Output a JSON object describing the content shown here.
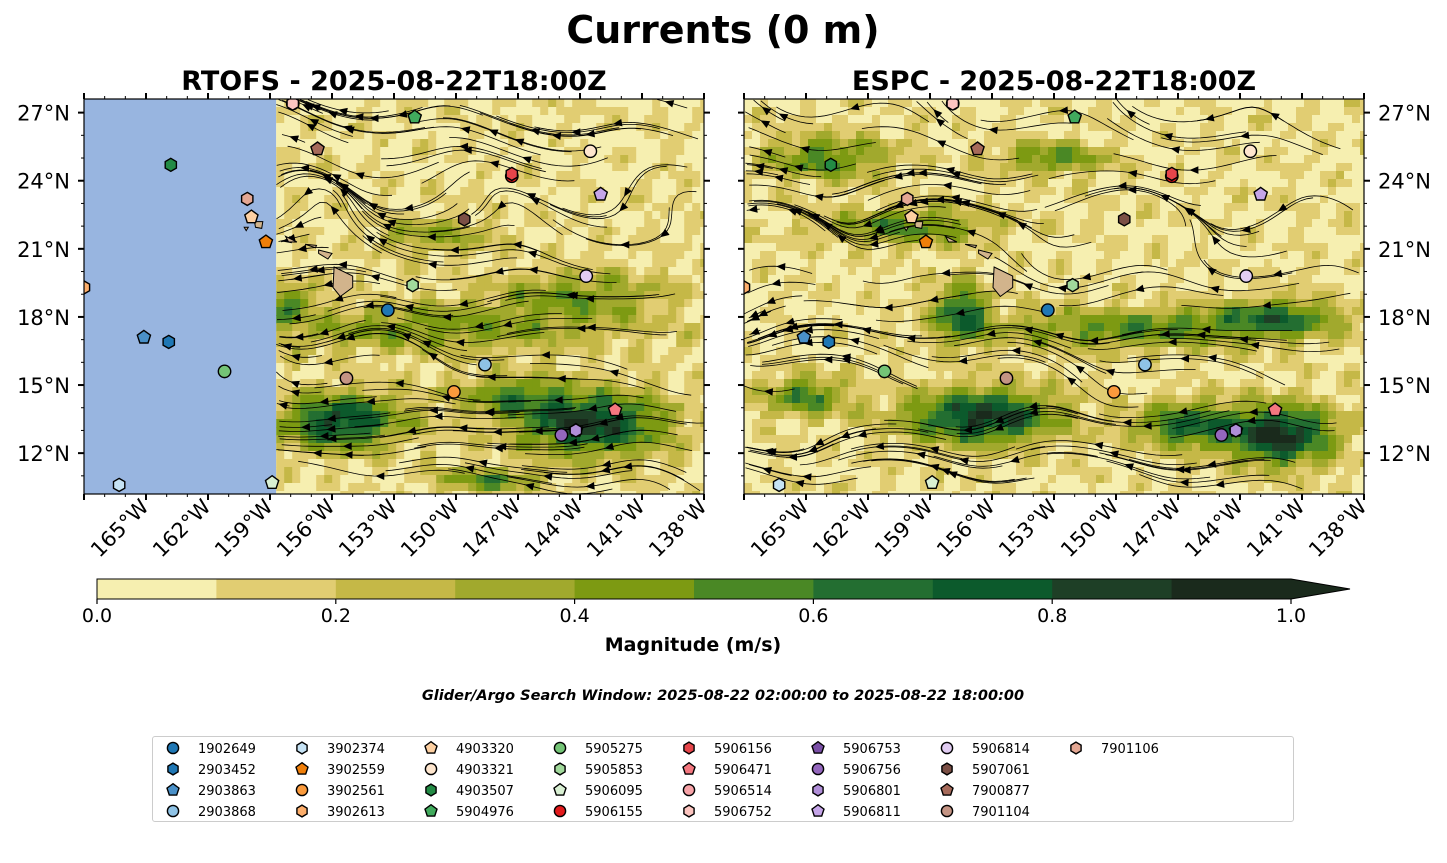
{
  "figure": {
    "title": "Currents (0 m)",
    "search_window": "Glider/Argo Search Window: 2025-08-22 02:00:00 to 2025-08-22 18:00:00"
  },
  "colors": {
    "land": "#d2b48c",
    "ocean_bg": "#98b5e0",
    "colorbar": [
      "#f6efb0",
      "#e1cd72",
      "#c5b847",
      "#a1a92d",
      "#7d9a12",
      "#4a8825",
      "#236e31",
      "#0c5a2c",
      "#1e3f26",
      "#1a2a1c"
    ]
  },
  "colorbar": {
    "label": "Magnitude (m/s)",
    "ticks": [
      "0.0",
      "0.2",
      "0.4",
      "0.6",
      "0.8",
      "1.0"
    ],
    "levels": [
      0,
      0.1,
      0.2,
      0.3,
      0.4,
      0.5,
      0.6,
      0.7,
      0.8,
      0.9,
      1.0
    ],
    "extend": "max"
  },
  "chart_data": [
    {
      "type": "heatmap",
      "subtype": "current magnitude contour map with streamlines",
      "title": "RTOFS - 2025-08-22T18:00Z",
      "lon_range": [
        -168,
        -138
      ],
      "lat_range": [
        10.2,
        27.6
      ],
      "data_lon_min": -158.7,
      "yaxis_side": "left",
      "x_ticks": [
        "165°W",
        "162°W",
        "159°W",
        "156°W",
        "153°W",
        "150°W",
        "147°W",
        "144°W",
        "141°W",
        "138°W"
      ],
      "y_ticks": [
        "12°N",
        "15°N",
        "18°N",
        "21°N",
        "24°N",
        "27°N"
      ],
      "jets": [
        {
          "lon": -151,
          "lat": 17.5,
          "mag": 0.35,
          "rlon": 9,
          "rlat": 1.1
        },
        {
          "lon": -155.5,
          "lat": 13.4,
          "mag": 0.75,
          "rlon": 3,
          "rlat": 1.2
        },
        {
          "lon": -143.5,
          "lat": 13.3,
          "mag": 0.8,
          "rlon": 3.6,
          "rlat": 1.4
        },
        {
          "lon": -147.5,
          "lat": 14.6,
          "mag": 0.4,
          "rlon": 2.5,
          "rlat": 0.8
        },
        {
          "lon": -148.5,
          "lat": 10.8,
          "mag": 0.45,
          "rlon": 2.5,
          "rlat": 0.5
        },
        {
          "lon": -158,
          "lat": 18.7,
          "mag": 0.45,
          "rlon": 1,
          "rlat": 0.8
        },
        {
          "lon": -144,
          "lat": 19,
          "mag": 0.35,
          "rlon": 4,
          "rlat": 1
        },
        {
          "lon": -151,
          "lat": 21.6,
          "mag": 0.3,
          "rlon": 3,
          "rlat": 0.8
        }
      ]
    },
    {
      "type": "heatmap",
      "subtype": "current magnitude contour map with streamlines",
      "title": "ESPC - 2025-08-22T18:00Z",
      "lon_range": [
        -168,
        -138
      ],
      "lat_range": [
        10.2,
        27.6
      ],
      "data_lon_min": -168,
      "yaxis_side": "right",
      "x_ticks": [
        "165°W",
        "162°W",
        "159°W",
        "156°W",
        "153°W",
        "150°W",
        "147°W",
        "144°W",
        "141°W",
        "138°W"
      ],
      "y_ticks": [
        "12°N",
        "15°N",
        "18°N",
        "21°N",
        "24°N",
        "27°N"
      ],
      "jets": [
        {
          "lon": -156.5,
          "lat": 13.6,
          "mag": 0.8,
          "rlon": 3.6,
          "rlat": 1.2
        },
        {
          "lon": -142,
          "lat": 12.8,
          "mag": 0.85,
          "rlon": 2.5,
          "rlat": 1.3
        },
        {
          "lon": -146.5,
          "lat": 13.2,
          "mag": 0.6,
          "rlon": 2.5,
          "rlat": 1
        },
        {
          "lon": -149,
          "lat": 17.5,
          "mag": 0.45,
          "rlon": 7,
          "rlat": 0.9
        },
        {
          "lon": -157.5,
          "lat": 18.2,
          "mag": 0.6,
          "rlon": 1.3,
          "rlat": 1.3
        },
        {
          "lon": -160,
          "lat": 22,
          "mag": 0.45,
          "rlon": 4,
          "rlat": 0.8
        },
        {
          "lon": -164,
          "lat": 25,
          "mag": 0.45,
          "rlon": 3,
          "rlat": 1
        },
        {
          "lon": -142,
          "lat": 18,
          "mag": 0.5,
          "rlon": 3,
          "rlat": 0.8
        },
        {
          "lon": -165,
          "lat": 14.5,
          "mag": 0.5,
          "rlon": 2,
          "rlat": 0.9
        },
        {
          "lon": -153,
          "lat": 25,
          "mag": 0.45,
          "rlon": 2.5,
          "rlat": 0.7
        }
      ]
    }
  ],
  "platforms": [
    {
      "id": "1902649",
      "marker": "circle",
      "color": "#1f77b4",
      "lon": -153.3,
      "lat": 18.3
    },
    {
      "id": "2903452",
      "marker": "hexagon",
      "color": "#1f77b4",
      "lon": -163.9,
      "lat": 16.9
    },
    {
      "id": "2903863",
      "marker": "pentagon",
      "color": "#4a90c8",
      "lon": -165.1,
      "lat": 17.1
    },
    {
      "id": "2903868",
      "marker": "circle",
      "color": "#8fc3e6",
      "lon": -148.6,
      "lat": 15.9
    },
    {
      "id": "3902374",
      "marker": "hexagon",
      "color": "#c6e3f5",
      "lon": -166.3,
      "lat": 10.6
    },
    {
      "id": "3902559",
      "marker": "pentagon",
      "color": "#f07f0a",
      "lon": -159.2,
      "lat": 21.3
    },
    {
      "id": "3902561",
      "marker": "circle",
      "color": "#fa9a3c",
      "lon": -150.1,
      "lat": 14.7
    },
    {
      "id": "3902613",
      "marker": "hexagon",
      "color": "#fdae6b",
      "lon": -168.0,
      "lat": 19.3
    },
    {
      "id": "4903320",
      "marker": "pentagon",
      "color": "#fdd0a2",
      "lon": -159.9,
      "lat": 22.4
    },
    {
      "id": "4903321",
      "marker": "circle",
      "color": "#fee6ce",
      "lon": -143.5,
      "lat": 25.3
    },
    {
      "id": "4903507",
      "marker": "hexagon",
      "color": "#238b45",
      "lon": -163.8,
      "lat": 24.7
    },
    {
      "id": "5904976",
      "marker": "pentagon",
      "color": "#41ab5d",
      "lon": -152.0,
      "lat": 26.8
    },
    {
      "id": "5905275",
      "marker": "circle",
      "color": "#74c476",
      "lon": -161.2,
      "lat": 15.6
    },
    {
      "id": "5905853",
      "marker": "hexagon",
      "color": "#a1d99b",
      "lon": -152.1,
      "lat": 19.4
    },
    {
      "id": "5906095",
      "marker": "pentagon",
      "color": "#d9f0d3",
      "lon": -158.9,
      "lat": 10.7
    },
    {
      "id": "5906155",
      "marker": "circle",
      "color": "#e31a1c",
      "lon": -147.3,
      "lat": 24.2
    },
    {
      "id": "5906156",
      "marker": "hexagon",
      "color": "#e6454a",
      "lon": -147.3,
      "lat": 24.3
    },
    {
      "id": "5906471",
      "marker": "pentagon",
      "color": "#f4777f",
      "lon": -142.3,
      "lat": 13.9
    },
    {
      "id": "5906514",
      "marker": "circle",
      "color": "#f7a3a8",
      "lon": -157.9,
      "lat": 27.4
    },
    {
      "id": "5906752",
      "marker": "hexagon",
      "color": "#fcc5c0",
      "lon": -157.9,
      "lat": 27.4
    },
    {
      "id": "5906753",
      "marker": "pentagon",
      "color": "#7a4fa6",
      "lon": -144.2,
      "lat": 13.0
    },
    {
      "id": "5906756",
      "marker": "circle",
      "color": "#9467bd",
      "lon": -144.9,
      "lat": 12.8
    },
    {
      "id": "5906801",
      "marker": "hexagon",
      "color": "#b08ed8",
      "lon": -144.2,
      "lat": 13.0
    },
    {
      "id": "5906811",
      "marker": "pentagon",
      "color": "#c5a5e8",
      "lon": -143.0,
      "lat": 23.4
    },
    {
      "id": "5906814",
      "marker": "circle",
      "color": "#e1ccf2",
      "lon": -143.7,
      "lat": 19.8
    },
    {
      "id": "5907061",
      "marker": "hexagon",
      "color": "#7b4f45",
      "lon": -149.6,
      "lat": 22.3
    },
    {
      "id": "7900877",
      "marker": "pentagon",
      "color": "#a66a5a",
      "lon": -156.7,
      "lat": 25.4
    },
    {
      "id": "7901104",
      "marker": "circle",
      "color": "#c49484",
      "lon": -155.3,
      "lat": 15.3
    },
    {
      "id": "7901106",
      "marker": "hexagon",
      "color": "#e4a793",
      "lon": -160.1,
      "lat": 23.2
    }
  ]
}
